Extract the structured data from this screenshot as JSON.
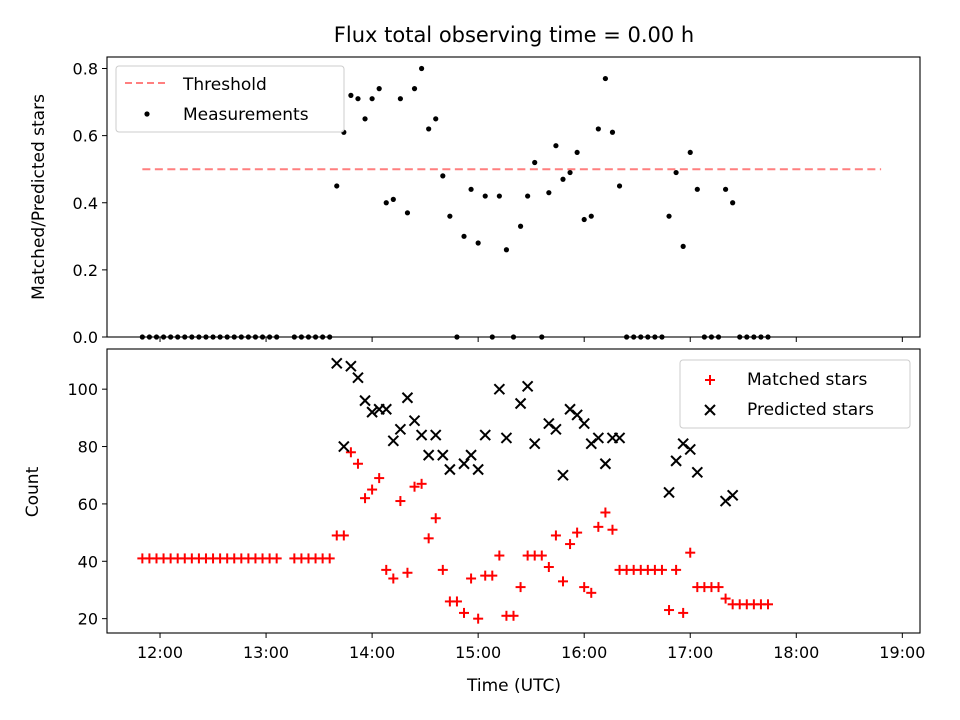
{
  "title": "Flux total observing time = 0.00 h",
  "colors": {
    "threshold": "#ff7f7f",
    "measurement": "#000000",
    "matched": "#ff0000",
    "predicted": "#000000"
  },
  "chart_data": [
    {
      "type": "scatter",
      "ylabel": "Matched/Predicted stars",
      "xlim": [
        "11:30",
        "19:10"
      ],
      "ylim": [
        0,
        0.8
      ],
      "yticks": [
        "0.0",
        "0.2",
        "0.4",
        "0.6",
        "0.8"
      ],
      "grid": false,
      "legend_position": "top-left",
      "legend": [
        "Threshold",
        "Measurements"
      ],
      "threshold": {
        "name": "Threshold",
        "value": 0.5,
        "x_range": [
          "11:50",
          "18:48"
        ]
      },
      "measurements": {
        "name": "Measurements",
        "points": [
          [
            "11:50",
            0
          ],
          [
            "11:54",
            0
          ],
          [
            "11:58",
            0
          ],
          [
            "12:02",
            0
          ],
          [
            "12:06",
            0
          ],
          [
            "12:10",
            0
          ],
          [
            "12:14",
            0
          ],
          [
            "12:18",
            0
          ],
          [
            "12:22",
            0
          ],
          [
            "12:26",
            0
          ],
          [
            "12:30",
            0
          ],
          [
            "12:34",
            0
          ],
          [
            "12:38",
            0
          ],
          [
            "12:42",
            0
          ],
          [
            "12:46",
            0
          ],
          [
            "12:50",
            0
          ],
          [
            "12:54",
            0
          ],
          [
            "12:58",
            0
          ],
          [
            "13:02",
            0
          ],
          [
            "13:06",
            0
          ],
          [
            "13:16",
            0
          ],
          [
            "13:20",
            0
          ],
          [
            "13:24",
            0
          ],
          [
            "13:28",
            0
          ],
          [
            "13:32",
            0
          ],
          [
            "13:36",
            0
          ],
          [
            "13:40",
            0.45
          ],
          [
            "13:44",
            0.61
          ],
          [
            "13:48",
            0.72
          ],
          [
            "13:52",
            0.71
          ],
          [
            "13:56",
            0.65
          ],
          [
            "14:00",
            0.71
          ],
          [
            "14:04",
            0.74
          ],
          [
            "14:08",
            0.4
          ],
          [
            "14:12",
            0.41
          ],
          [
            "14:16",
            0.71
          ],
          [
            "14:20",
            0.37
          ],
          [
            "14:24",
            0.74
          ],
          [
            "14:28",
            0.8
          ],
          [
            "14:32",
            0.62
          ],
          [
            "14:36",
            0.65
          ],
          [
            "14:40",
            0.48
          ],
          [
            "14:44",
            0.36
          ],
          [
            "14:48",
            0.0
          ],
          [
            "14:52",
            0.3
          ],
          [
            "14:56",
            0.44
          ],
          [
            "15:00",
            0.28
          ],
          [
            "15:04",
            0.42
          ],
          [
            "15:08",
            0.0
          ],
          [
            "15:12",
            0.42
          ],
          [
            "15:16",
            0.26
          ],
          [
            "15:20",
            0.0
          ],
          [
            "15:24",
            0.33
          ],
          [
            "15:28",
            0.42
          ],
          [
            "15:32",
            0.52
          ],
          [
            "15:36",
            0.0
          ],
          [
            "15:40",
            0.43
          ],
          [
            "15:44",
            0.57
          ],
          [
            "15:48",
            0.47
          ],
          [
            "15:52",
            0.49
          ],
          [
            "15:56",
            0.55
          ],
          [
            "16:00",
            0.35
          ],
          [
            "16:04",
            0.36
          ],
          [
            "16:08",
            0.62
          ],
          [
            "16:12",
            0.77
          ],
          [
            "16:16",
            0.61
          ],
          [
            "16:20",
            0.45
          ],
          [
            "16:24",
            0
          ],
          [
            "16:28",
            0
          ],
          [
            "16:32",
            0
          ],
          [
            "16:36",
            0
          ],
          [
            "16:40",
            0
          ],
          [
            "16:44",
            0
          ],
          [
            "16:48",
            0.36
          ],
          [
            "16:52",
            0.49
          ],
          [
            "16:56",
            0.27
          ],
          [
            "17:00",
            0.55
          ],
          [
            "17:04",
            0.44
          ],
          [
            "17:08",
            0
          ],
          [
            "17:12",
            0
          ],
          [
            "17:16",
            0
          ],
          [
            "17:20",
            0.44
          ],
          [
            "17:24",
            0.4
          ],
          [
            "17:28",
            0
          ],
          [
            "17:32",
            0
          ],
          [
            "17:36",
            0
          ],
          [
            "17:40",
            0
          ],
          [
            "17:44",
            0
          ]
        ]
      }
    },
    {
      "type": "scatter",
      "xlabel": "Time (UTC)",
      "ylabel": "Count",
      "xlim": [
        "11:30",
        "19:10"
      ],
      "ylim": [
        15,
        114
      ],
      "xticks": [
        "12:00",
        "13:00",
        "14:00",
        "15:00",
        "16:00",
        "17:00",
        "18:00",
        "19:00"
      ],
      "yticks": [
        "20",
        "40",
        "60",
        "80",
        "100"
      ],
      "grid": false,
      "legend_position": "top-right",
      "series": [
        {
          "name": "Matched stars",
          "marker": "+",
          "points": [
            [
              "11:50",
              41
            ],
            [
              "11:54",
              41
            ],
            [
              "11:58",
              41
            ],
            [
              "12:02",
              41
            ],
            [
              "12:06",
              41
            ],
            [
              "12:10",
              41
            ],
            [
              "12:14",
              41
            ],
            [
              "12:18",
              41
            ],
            [
              "12:22",
              41
            ],
            [
              "12:26",
              41
            ],
            [
              "12:30",
              41
            ],
            [
              "12:34",
              41
            ],
            [
              "12:38",
              41
            ],
            [
              "12:42",
              41
            ],
            [
              "12:46",
              41
            ],
            [
              "12:50",
              41
            ],
            [
              "12:54",
              41
            ],
            [
              "12:58",
              41
            ],
            [
              "13:02",
              41
            ],
            [
              "13:06",
              41
            ],
            [
              "13:16",
              41
            ],
            [
              "13:20",
              41
            ],
            [
              "13:24",
              41
            ],
            [
              "13:28",
              41
            ],
            [
              "13:32",
              41
            ],
            [
              "13:36",
              41
            ],
            [
              "13:40",
              49
            ],
            [
              "13:44",
              49
            ],
            [
              "13:48",
              78
            ],
            [
              "13:52",
              74
            ],
            [
              "13:56",
              62
            ],
            [
              "14:00",
              65
            ],
            [
              "14:04",
              69
            ],
            [
              "14:08",
              37
            ],
            [
              "14:12",
              34
            ],
            [
              "14:16",
              61
            ],
            [
              "14:20",
              36
            ],
            [
              "14:24",
              66
            ],
            [
              "14:28",
              67
            ],
            [
              "14:32",
              48
            ],
            [
              "14:36",
              55
            ],
            [
              "14:40",
              37
            ],
            [
              "14:44",
              26
            ],
            [
              "14:48",
              26
            ],
            [
              "14:52",
              22
            ],
            [
              "14:56",
              34
            ],
            [
              "15:00",
              20
            ],
            [
              "15:04",
              35
            ],
            [
              "15:08",
              35
            ],
            [
              "15:12",
              42
            ],
            [
              "15:16",
              21
            ],
            [
              "15:20",
              21
            ],
            [
              "15:24",
              31
            ],
            [
              "15:28",
              42
            ],
            [
              "15:32",
              42
            ],
            [
              "15:36",
              42
            ],
            [
              "15:40",
              38
            ],
            [
              "15:44",
              49
            ],
            [
              "15:48",
              33
            ],
            [
              "15:52",
              46
            ],
            [
              "15:56",
              50
            ],
            [
              "16:00",
              31
            ],
            [
              "16:04",
              29
            ],
            [
              "16:08",
              52
            ],
            [
              "16:12",
              57
            ],
            [
              "16:16",
              51
            ],
            [
              "16:20",
              37
            ],
            [
              "16:24",
              37
            ],
            [
              "16:28",
              37
            ],
            [
              "16:32",
              37
            ],
            [
              "16:36",
              37
            ],
            [
              "16:40",
              37
            ],
            [
              "16:44",
              37
            ],
            [
              "16:48",
              23
            ],
            [
              "16:52",
              37
            ],
            [
              "16:56",
              22
            ],
            [
              "17:00",
              43
            ],
            [
              "17:04",
              31
            ],
            [
              "17:08",
              31
            ],
            [
              "17:12",
              31
            ],
            [
              "17:16",
              31
            ],
            [
              "17:20",
              27
            ],
            [
              "17:24",
              25
            ],
            [
              "17:28",
              25
            ],
            [
              "17:32",
              25
            ],
            [
              "17:36",
              25
            ],
            [
              "17:40",
              25
            ],
            [
              "17:44",
              25
            ]
          ]
        },
        {
          "name": "Predicted stars",
          "marker": "x",
          "points": [
            [
              "13:40",
              109
            ],
            [
              "13:44",
              80
            ],
            [
              "13:48",
              108
            ],
            [
              "13:52",
              104
            ],
            [
              "13:56",
              96
            ],
            [
              "14:00",
              92
            ],
            [
              "14:04",
              93
            ],
            [
              "14:08",
              93
            ],
            [
              "14:12",
              82
            ],
            [
              "14:16",
              86
            ],
            [
              "14:20",
              97
            ],
            [
              "14:24",
              89
            ],
            [
              "14:28",
              84
            ],
            [
              "14:32",
              77
            ],
            [
              "14:36",
              84
            ],
            [
              "14:40",
              77
            ],
            [
              "14:44",
              72
            ],
            [
              "14:52",
              74
            ],
            [
              "14:56",
              77
            ],
            [
              "15:00",
              72
            ],
            [
              "15:04",
              84
            ],
            [
              "15:12",
              100
            ],
            [
              "15:16",
              83
            ],
            [
              "15:24",
              95
            ],
            [
              "15:28",
              101
            ],
            [
              "15:32",
              81
            ],
            [
              "15:40",
              88
            ],
            [
              "15:44",
              86
            ],
            [
              "15:48",
              70
            ],
            [
              "15:52",
              93
            ],
            [
              "15:56",
              91
            ],
            [
              "16:00",
              88
            ],
            [
              "16:04",
              81
            ],
            [
              "16:08",
              83
            ],
            [
              "16:12",
              74
            ],
            [
              "16:16",
              83
            ],
            [
              "16:20",
              83
            ],
            [
              "16:48",
              64
            ],
            [
              "16:52",
              75
            ],
            [
              "16:56",
              81
            ],
            [
              "17:00",
              79
            ],
            [
              "17:04",
              71
            ],
            [
              "17:20",
              61
            ],
            [
              "17:24",
              63
            ]
          ]
        }
      ]
    }
  ]
}
